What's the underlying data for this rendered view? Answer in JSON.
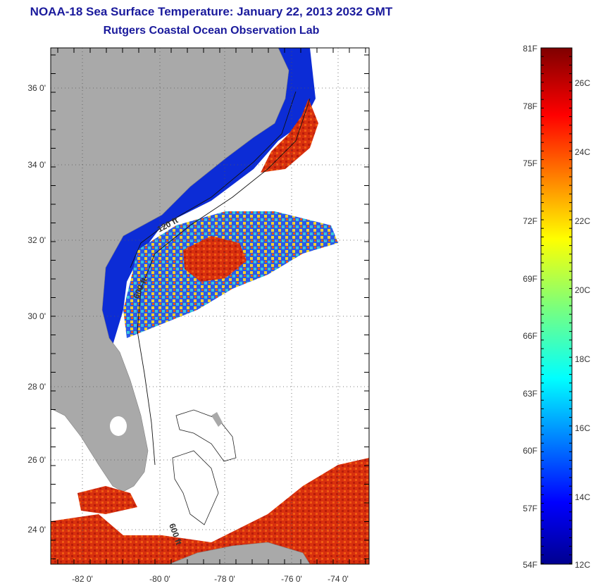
{
  "header": {
    "title": "NOAA-18 Sea Surface Temperature:  January 22, 2013 2032 GMT",
    "subtitle": "Rutgers Coastal Ocean Observation Lab"
  },
  "map": {
    "lat_ticks": [
      "36 0'",
      "34 0'",
      "32 0'",
      "30 0'",
      "28 0'",
      "26 0'",
      "24 0'"
    ],
    "lon_ticks": [
      "-82 0'",
      "-80 0'",
      "-78 0'",
      "-76 0'",
      "-74 0'"
    ],
    "isobath_labels": [
      "120 ft",
      "600 ft",
      "600 ft"
    ],
    "colors": {
      "land": "#a9a9a9",
      "background": "#ffffff",
      "warm": "#d42a0c",
      "cold": "#0a1ebe"
    }
  },
  "colorbar": {
    "fahrenheit": [
      "81F",
      "78F",
      "75F",
      "72F",
      "69F",
      "66F",
      "63F",
      "60F",
      "57F",
      "54F"
    ],
    "celsius": [
      "26C",
      "24C",
      "22C",
      "20C",
      "18C",
      "16C",
      "14C",
      "12C"
    ]
  }
}
